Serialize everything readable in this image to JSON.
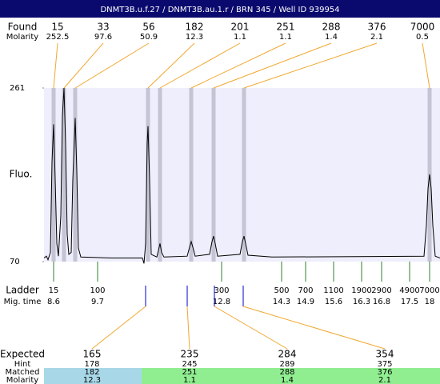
{
  "header": {
    "title": "DNMT3B.u.f.27 / DNMT3B.au.1.r / BRN 345 / Well ID 939954"
  },
  "chart_data": {
    "type": "electropherogram",
    "ylabel": "Fluo.",
    "xlim": [
      8.36,
      18.26
    ],
    "ylim": [
      70,
      261
    ],
    "yticks": [
      70,
      261
    ],
    "trace": {
      "color": "#000000",
      "x": [
        8.36,
        8.42,
        8.46,
        8.52,
        8.56,
        8.6,
        8.64,
        8.68,
        8.72,
        8.78,
        8.82,
        8.86,
        8.9,
        8.94,
        8.98,
        9.04,
        9.08,
        9.14,
        9.18,
        9.22,
        9.28,
        10.06,
        10.82,
        10.86,
        10.9,
        10.94,
        10.96,
        11.0,
        11.04,
        11.18,
        11.22,
        11.26,
        11.3,
        11.36,
        11.94,
        12.0,
        12.04,
        12.08,
        12.14,
        12.5,
        12.56,
        12.6,
        12.64,
        12.7,
        13.26,
        13.32,
        13.36,
        13.4,
        13.46,
        14.06,
        17.86,
        17.92,
        17.96,
        18.0,
        18.04,
        18.08,
        18.14,
        18.26
      ],
      "y": [
        74,
        76,
        72,
        80,
        180,
        221,
        160,
        90,
        76,
        120,
        230,
        261,
        200,
        100,
        78,
        80,
        160,
        228,
        170,
        85,
        75,
        74,
        74,
        68,
        90,
        200,
        219,
        160,
        78,
        75,
        82,
        90,
        80,
        75,
        76,
        86,
        92,
        86,
        76,
        78,
        92,
        98,
        90,
        76,
        78,
        92,
        98,
        90,
        77,
        75,
        76,
        110,
        150,
        166,
        150,
        110,
        76,
        74
      ]
    },
    "found": {
      "label": "Found",
      "molarity_label": "Molarity",
      "color": "#f0a830",
      "peaks": [
        {
          "size": 15,
          "molarity": 252.5,
          "time": 8.6
        },
        {
          "size": 33,
          "molarity": 97.6,
          "time": 8.86
        },
        {
          "size": 56,
          "molarity": 50.9,
          "time": 9.14
        },
        {
          "size": 182,
          "molarity": 12.3,
          "time": 10.96
        },
        {
          "size": 201,
          "molarity": 1.1,
          "time": 11.26
        },
        {
          "size": 251,
          "molarity": 1.1,
          "time": 12.04
        },
        {
          "size": 288,
          "molarity": 1.4,
          "time": 12.6
        },
        {
          "size": 376,
          "molarity": 2.1,
          "time": 13.36
        },
        {
          "size": 7000,
          "molarity": 0.5,
          "time": 18.0
        }
      ]
    },
    "ladder": {
      "label": "Ladder",
      "time_label": "Mig. time",
      "color": "#2e7d2e",
      "sizes": [
        15,
        100,
        300,
        500,
        700,
        1100,
        1900,
        2900,
        4900,
        7000
      ],
      "times": [
        8.6,
        9.7,
        12.8,
        14.3,
        14.9,
        15.6,
        16.3,
        16.8,
        17.5,
        18
      ]
    },
    "expected": {
      "marker_color": "#0000cc",
      "labels": {
        "expected": "Expected",
        "hint": "Hint",
        "matched": "Matched",
        "molarity": "Molarity"
      },
      "items": [
        {
          "expected": 165,
          "hint": 178,
          "matched": 182,
          "molarity": 12.3,
          "time": 10.9,
          "color": "#a8d8e8"
        },
        {
          "expected": 235,
          "hint": 245,
          "matched": 251,
          "molarity": 1.1,
          "time": 11.94,
          "color": "#90ee90"
        },
        {
          "expected": 284,
          "hint": 289,
          "matched": 288,
          "molarity": 1.4,
          "time": 12.62,
          "color": "#90ee90"
        },
        {
          "expected": 354,
          "hint": 375,
          "matched": 376,
          "molarity": 2.1,
          "time": 13.34,
          "color": "#90ee90"
        }
      ]
    }
  }
}
